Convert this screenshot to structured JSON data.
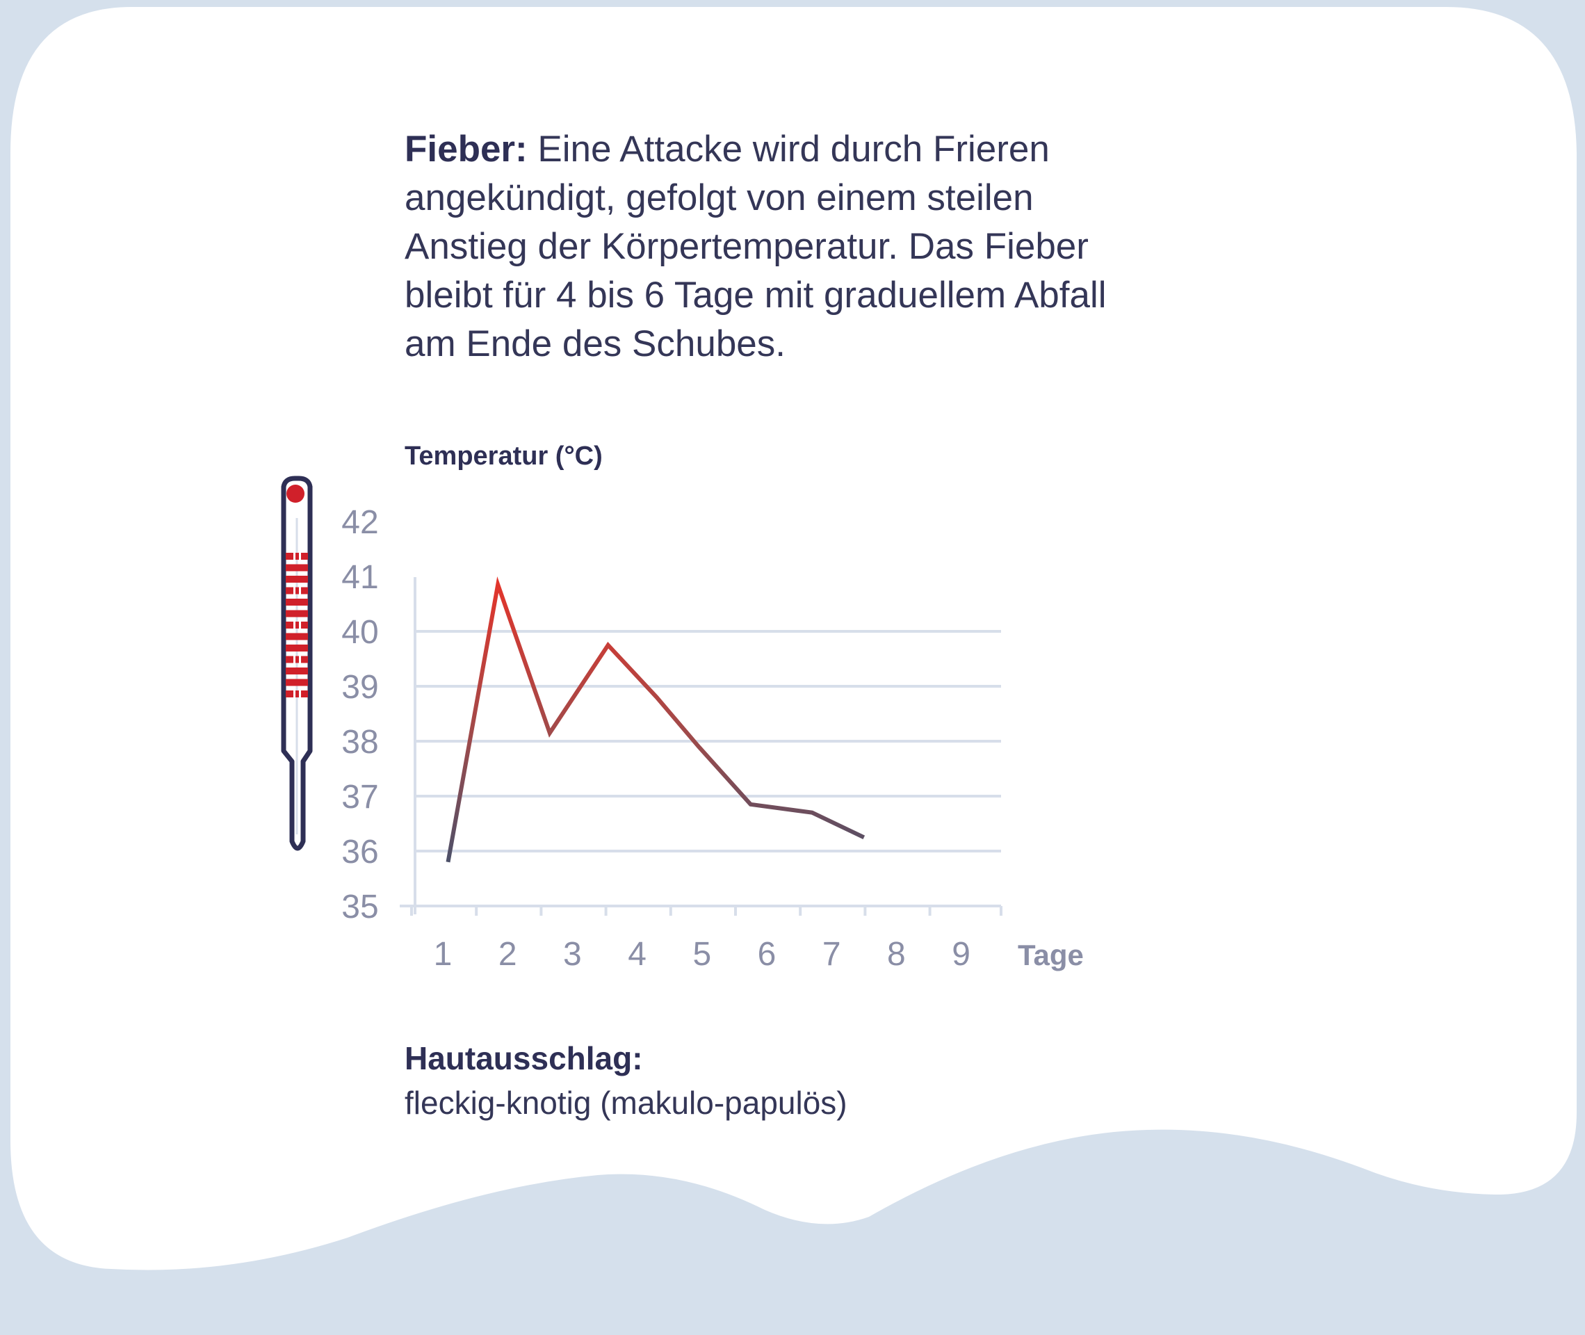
{
  "header": {
    "lead": "Fieber:",
    "text": " Eine Attacke wird durch Frieren angekündigt, gefolgt von einem steilen Anstieg der Körpertemperatur. Das Fieber bleibt für 4 bis 6 Tage mit graduellem Abfall am Ende des Schubes."
  },
  "footer": {
    "title": "Hautausschlag:",
    "text": "fleckig-knotig (makulo-papulös)"
  },
  "icons": {
    "thermometer": "thermometer-icon"
  },
  "colors": {
    "background": "#d5e0ec",
    "card": "#ffffff",
    "text": "#343657",
    "line_hot": "#e5342a",
    "line_cool": "#4c5069",
    "grid": "#d7deea",
    "tick_text": "#8a8ea6"
  },
  "chart_data": {
    "type": "line",
    "ylabel": "Temperatur (°C)",
    "xlabel": "Tage",
    "ylim": [
      35,
      42
    ],
    "yticks": [
      35,
      36,
      37,
      38,
      39,
      40,
      41,
      42
    ],
    "xticks": [
      1,
      2,
      3,
      4,
      5,
      6,
      7,
      8,
      9
    ],
    "grid": true,
    "series": [
      {
        "x": [
          1.08,
          1.85,
          2.65,
          3.55,
          4.3,
          4.95,
          5.75,
          6.7,
          7.5
        ],
        "y": [
          35.8,
          40.85,
          38.15,
          39.75,
          38.8,
          37.9,
          36.85,
          36.7,
          36.25
        ]
      }
    ]
  }
}
